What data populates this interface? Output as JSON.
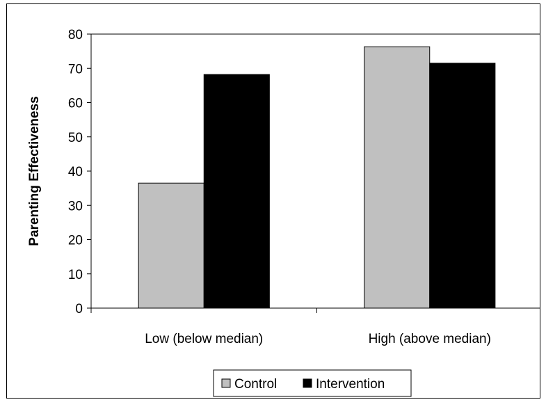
{
  "chart_data": {
    "type": "bar",
    "title": "",
    "xlabel": "",
    "ylabel": "Parenting Effectiveness",
    "categories": [
      "Low (below median)",
      "High (above median)"
    ],
    "series": [
      {
        "name": "Control",
        "values": [
          36.5,
          76.3
        ],
        "color": "#c0c0c0"
      },
      {
        "name": "Intervention",
        "values": [
          68.2,
          71.5
        ],
        "color": "#000000"
      }
    ],
    "ylim": [
      0,
      80
    ],
    "yticks": [
      0,
      10,
      20,
      30,
      40,
      50,
      60,
      70,
      80
    ],
    "grid": false,
    "legend_position": "bottom"
  }
}
